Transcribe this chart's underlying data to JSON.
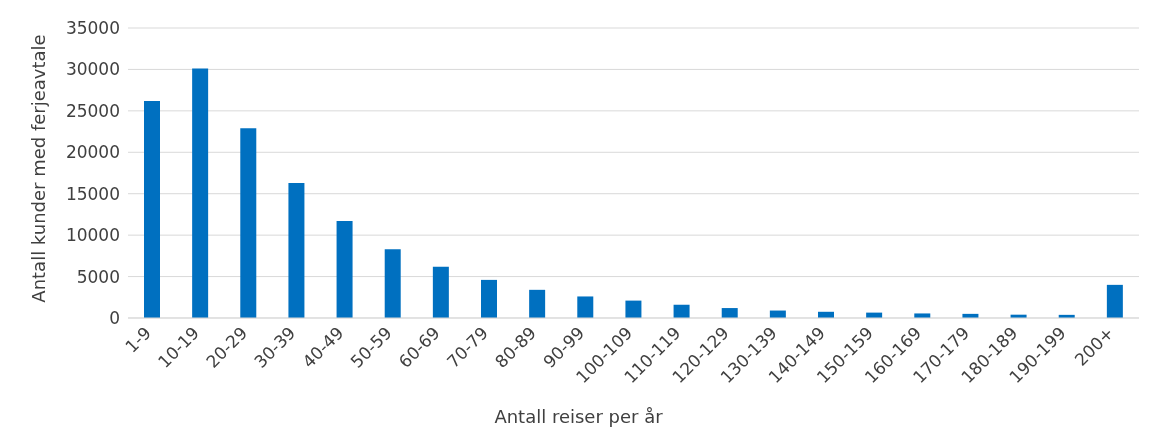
{
  "chart_data": {
    "type": "bar",
    "xlabel": "Antall reiser per år",
    "ylabel": "Antall kunder med ferjeavtale",
    "categories": [
      "1-9",
      "10-19",
      "20-29",
      "30-39",
      "40-49",
      "50-59",
      "60-69",
      "70-79",
      "80-89",
      "90-99",
      "100-109",
      "110-119",
      "120-129",
      "130-139",
      "140-149",
      "150-159",
      "160-169",
      "170-179",
      "180-189",
      "190-199",
      "200+"
    ],
    "values": [
      26200,
      30100,
      22900,
      16300,
      11700,
      8300,
      6200,
      4600,
      3400,
      2600,
      2100,
      1600,
      1200,
      900,
      750,
      650,
      550,
      500,
      400,
      380,
      4000
    ],
    "color": "#0070c0",
    "ylim": [
      0,
      35000
    ],
    "yticks": [
      0,
      5000,
      10000,
      15000,
      20000,
      25000,
      30000,
      35000
    ],
    "grid": "y"
  }
}
